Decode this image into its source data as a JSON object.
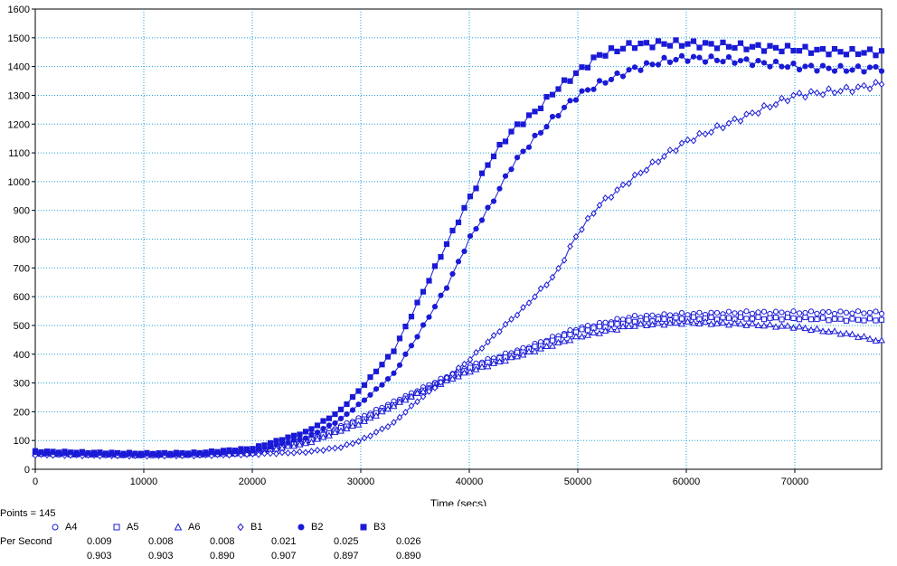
{
  "chart_data": {
    "type": "scatter",
    "xlabel": "Time (secs)",
    "ylabel": "",
    "xlim": [
      0,
      78000
    ],
    "ylim": [
      0,
      1600
    ],
    "xticks": [
      0,
      10000,
      20000,
      30000,
      40000,
      50000,
      60000,
      70000
    ],
    "yticks": [
      0,
      100,
      200,
      300,
      400,
      500,
      600,
      700,
      800,
      900,
      1000,
      1100,
      1200,
      1300,
      1400,
      1500,
      1600
    ],
    "grid": true,
    "series": [
      {
        "name": "A4",
        "marker": "circle-open",
        "points": [
          [
            0,
            55
          ],
          [
            5000,
            52
          ],
          [
            10000,
            50
          ],
          [
            15000,
            52
          ],
          [
            20000,
            60
          ],
          [
            25000,
            100
          ],
          [
            30000,
            180
          ],
          [
            35000,
            270
          ],
          [
            40000,
            360
          ],
          [
            45000,
            420
          ],
          [
            50000,
            490
          ],
          [
            55000,
            530
          ],
          [
            60000,
            540
          ],
          [
            65000,
            545
          ],
          [
            70000,
            545
          ],
          [
            75000,
            545
          ],
          [
            78000,
            545
          ]
        ]
      },
      {
        "name": "A5",
        "marker": "square-open",
        "points": [
          [
            0,
            55
          ],
          [
            5000,
            52
          ],
          [
            10000,
            50
          ],
          [
            15000,
            52
          ],
          [
            20000,
            58
          ],
          [
            25000,
            95
          ],
          [
            30000,
            170
          ],
          [
            35000,
            260
          ],
          [
            40000,
            350
          ],
          [
            45000,
            410
          ],
          [
            50000,
            480
          ],
          [
            55000,
            515
          ],
          [
            60000,
            525
          ],
          [
            65000,
            525
          ],
          [
            70000,
            525
          ],
          [
            75000,
            520
          ],
          [
            78000,
            520
          ]
        ]
      },
      {
        "name": "A6",
        "marker": "triangle-open",
        "points": [
          [
            0,
            55
          ],
          [
            5000,
            52
          ],
          [
            10000,
            50
          ],
          [
            15000,
            52
          ],
          [
            20000,
            57
          ],
          [
            25000,
            90
          ],
          [
            30000,
            160
          ],
          [
            35000,
            260
          ],
          [
            40000,
            340
          ],
          [
            45000,
            400
          ],
          [
            50000,
            460
          ],
          [
            55000,
            500
          ],
          [
            60000,
            510
          ],
          [
            65000,
            505
          ],
          [
            70000,
            495
          ],
          [
            75000,
            470
          ],
          [
            78000,
            445
          ]
        ]
      },
      {
        "name": "B1",
        "marker": "diamond-open",
        "points": [
          [
            0,
            50
          ],
          [
            5000,
            48
          ],
          [
            10000,
            47
          ],
          [
            15000,
            48
          ],
          [
            20000,
            52
          ],
          [
            25000,
            60
          ],
          [
            28000,
            75
          ],
          [
            30000,
            100
          ],
          [
            33000,
            160
          ],
          [
            35000,
            230
          ],
          [
            38000,
            320
          ],
          [
            40000,
            380
          ],
          [
            43000,
            490
          ],
          [
            45000,
            560
          ],
          [
            48000,
            680
          ],
          [
            50000,
            820
          ],
          [
            52000,
            920
          ],
          [
            55000,
            1010
          ],
          [
            58000,
            1090
          ],
          [
            60000,
            1140
          ],
          [
            65000,
            1220
          ],
          [
            70000,
            1300
          ],
          [
            75000,
            1320
          ],
          [
            78000,
            1340
          ]
        ]
      },
      {
        "name": "B2",
        "marker": "circle-filled",
        "points": [
          [
            0,
            58
          ],
          [
            5000,
            55
          ],
          [
            10000,
            53
          ],
          [
            15000,
            55
          ],
          [
            20000,
            65
          ],
          [
            25000,
            110
          ],
          [
            28000,
            170
          ],
          [
            30000,
            230
          ],
          [
            33000,
            330
          ],
          [
            35000,
            450
          ],
          [
            38000,
            640
          ],
          [
            40000,
            800
          ],
          [
            42000,
            920
          ],
          [
            44000,
            1060
          ],
          [
            46000,
            1150
          ],
          [
            48000,
            1230
          ],
          [
            50000,
            1300
          ],
          [
            52000,
            1340
          ],
          [
            55000,
            1390
          ],
          [
            58000,
            1420
          ],
          [
            60000,
            1430
          ],
          [
            65000,
            1420
          ],
          [
            70000,
            1400
          ],
          [
            75000,
            1390
          ],
          [
            78000,
            1395
          ]
        ]
      },
      {
        "name": "B3",
        "marker": "square-filled",
        "points": [
          [
            0,
            62
          ],
          [
            5000,
            58
          ],
          [
            10000,
            55
          ],
          [
            15000,
            57
          ],
          [
            20000,
            72
          ],
          [
            25000,
            130
          ],
          [
            28000,
            200
          ],
          [
            30000,
            280
          ],
          [
            33000,
            410
          ],
          [
            35000,
            560
          ],
          [
            38000,
            790
          ],
          [
            40000,
            940
          ],
          [
            42000,
            1080
          ],
          [
            44000,
            1180
          ],
          [
            46000,
            1240
          ],
          [
            48000,
            1320
          ],
          [
            50000,
            1380
          ],
          [
            52000,
            1440
          ],
          [
            55000,
            1475
          ],
          [
            58000,
            1480
          ],
          [
            60000,
            1480
          ],
          [
            65000,
            1470
          ],
          [
            70000,
            1460
          ],
          [
            75000,
            1450
          ],
          [
            78000,
            1450
          ]
        ]
      }
    ]
  },
  "legend": {
    "points_label": "Points = 145",
    "per_second_label": "Per Second",
    "entries": [
      {
        "name": "A4",
        "marker": "circle-open",
        "rate": "0.009",
        "r": "0.903"
      },
      {
        "name": "A5",
        "marker": "square-open",
        "rate": "0.008",
        "r": "0.903"
      },
      {
        "name": "A6",
        "marker": "triangle-open",
        "rate": "0.008",
        "r": "0.890"
      },
      {
        "name": "B1",
        "marker": "diamond-open",
        "rate": "0.021",
        "r": "0.907"
      },
      {
        "name": "B2",
        "marker": "circle-filled",
        "rate": "0.025",
        "r": "0.897"
      },
      {
        "name": "B3",
        "marker": "square-filled",
        "rate": "0.026",
        "r": "0.890"
      }
    ]
  },
  "colors": {
    "series": "#1a1ad6",
    "grid": "#1e9fd8",
    "axis": "#000000"
  }
}
